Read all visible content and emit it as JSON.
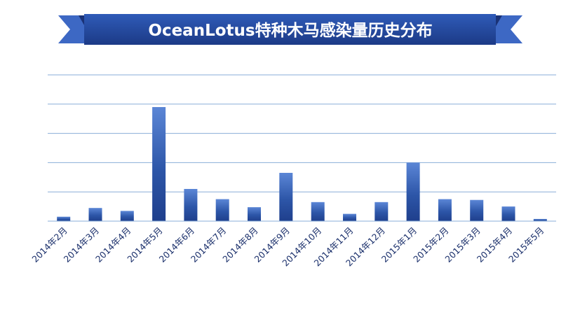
{
  "chart_data": {
    "type": "bar",
    "title": "OceanLotus特种木马感染量历史分布",
    "xlabel": "",
    "ylabel": "",
    "categories": [
      "2014年2月",
      "2014年3月",
      "2014年4月",
      "2014年5月",
      "2014年6月",
      "2014年7月",
      "2014年8月",
      "2014年9月",
      "2014年10月",
      "2014年11月",
      "2014年12月",
      "2015年1月",
      "2015年2月",
      "2015年3月",
      "2015年4月",
      "2015年5月"
    ],
    "series": [
      {
        "name": "",
        "values": [
          3,
          9,
          7,
          78,
          22,
          15,
          9.5,
          33,
          13,
          5,
          13,
          40,
          15,
          14.5,
          10,
          1.5
        ]
      }
    ],
    "ylim": [
      0,
      100
    ],
    "y_ticks_shown": false,
    "grid": true,
    "legend": "none",
    "colors": {
      "bar_top": "#5b86d6",
      "bar_bottom": "#1f3f8c",
      "gridline": "#8aaed8",
      "axis_label": "#1a2f6b",
      "banner_dark": "#1e3f8c",
      "banner_light": "#4a78cf"
    }
  }
}
